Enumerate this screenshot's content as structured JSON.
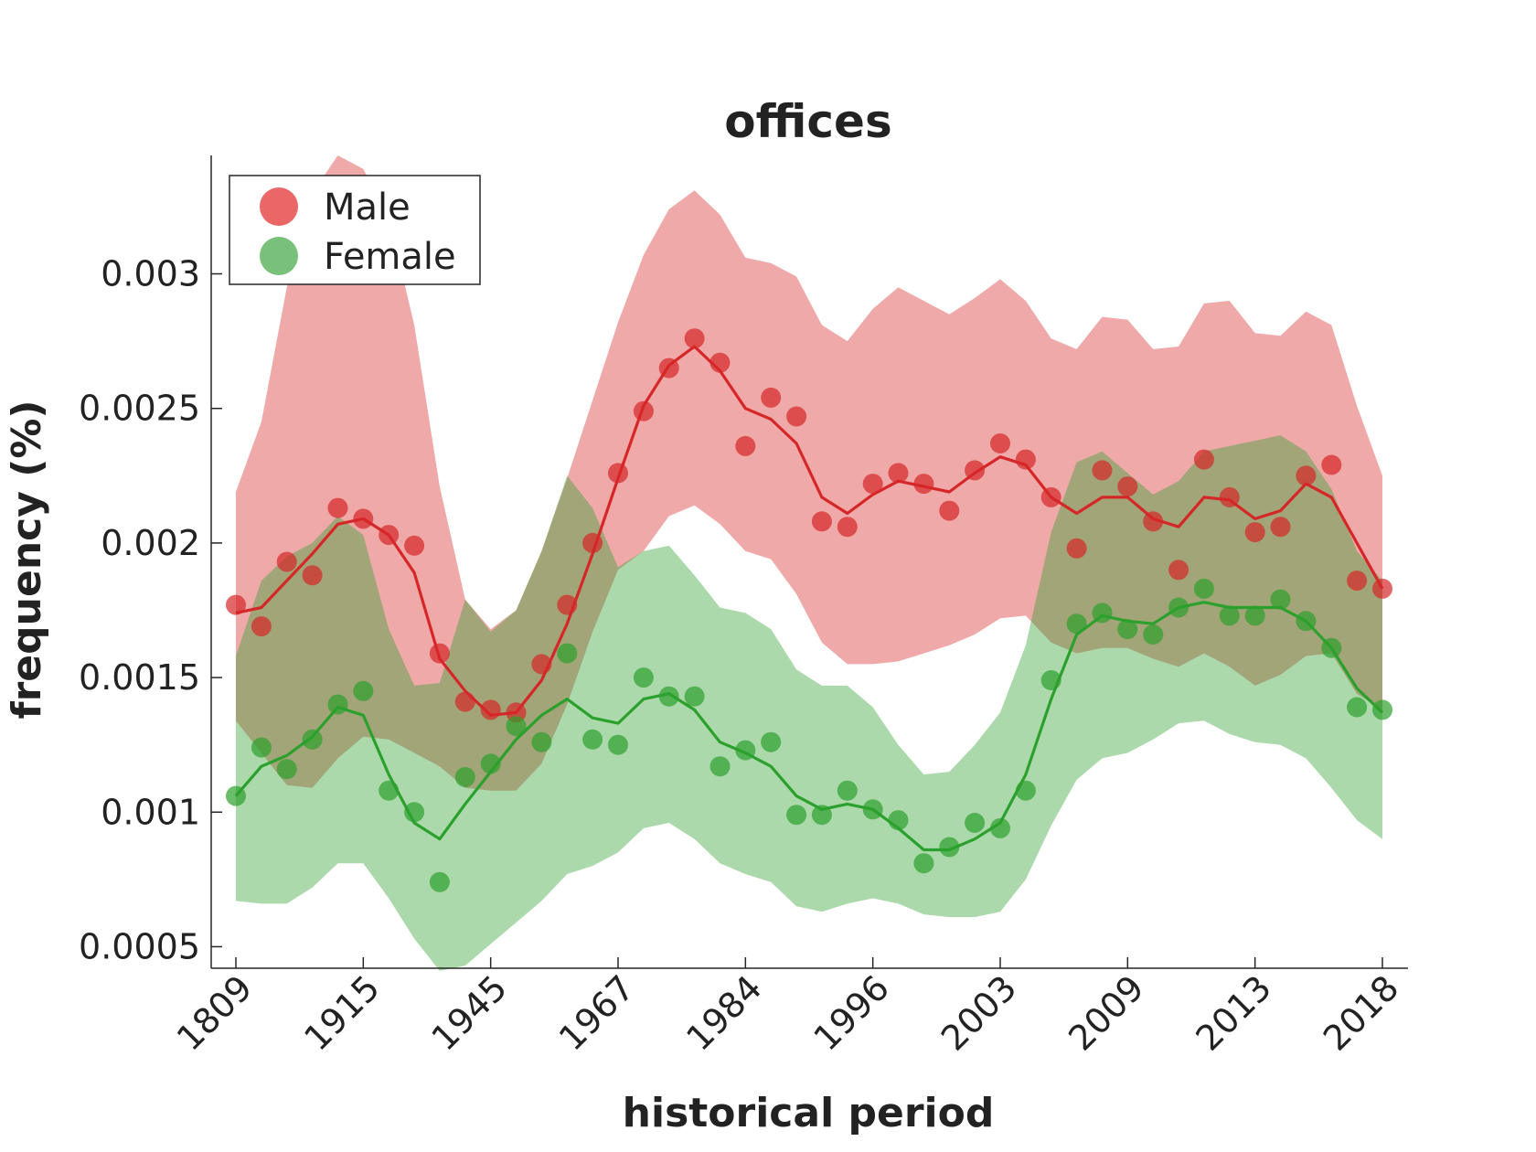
{
  "chart_data": {
    "type": "line",
    "title": "offices",
    "xlabel": "historical period",
    "ylabel": "frequency (%)",
    "ylim": [
      0.00042,
      0.00344
    ],
    "yticks": [
      "0.0005",
      "0.001",
      "0.0015",
      "0.002",
      "0.0025",
      "0.003"
    ],
    "xtick_labels": [
      "1809",
      "1915",
      "1945",
      "1967",
      "1984",
      "1996",
      "2003",
      "2009",
      "2013",
      "2018"
    ],
    "xtick_positions": [
      0,
      5,
      10,
      15,
      20,
      25,
      30,
      35,
      40,
      45
    ],
    "legend_position": "top-left",
    "grid": false,
    "series": [
      {
        "name": "Male",
        "color": "#d62728",
        "band_color": "#f4a3a5",
        "points": [
          0.00177,
          0.00169,
          0.00193,
          0.00188,
          0.00213,
          0.00209,
          0.00203,
          0.00199,
          0.00159,
          0.00141,
          0.00138,
          0.00137,
          0.00155,
          0.00177,
          0.002,
          0.00226,
          0.00249,
          0.00265,
          0.00276,
          0.00267,
          0.00236,
          0.00254,
          0.00247,
          0.00208,
          0.00206,
          0.00222,
          0.00226,
          0.00222,
          0.00212,
          0.00227,
          0.00237,
          0.00231,
          0.00217,
          0.00198,
          0.00227,
          0.00221,
          0.00208,
          0.0019,
          0.00231,
          0.00217,
          0.00204,
          0.00206,
          0.00225,
          0.00229,
          0.00186,
          0.00183
        ],
        "smooth": [
          0.00174,
          0.00176,
          0.00186,
          0.00196,
          0.00207,
          0.00209,
          0.00203,
          0.00189,
          0.00157,
          0.00145,
          0.00136,
          0.00137,
          0.00149,
          0.0017,
          0.00196,
          0.00224,
          0.00251,
          0.00266,
          0.00273,
          0.00264,
          0.0025,
          0.00246,
          0.00237,
          0.00217,
          0.00211,
          0.00218,
          0.00223,
          0.00221,
          0.00219,
          0.00226,
          0.00232,
          0.00229,
          0.00217,
          0.00211,
          0.00217,
          0.00217,
          0.00209,
          0.00206,
          0.00217,
          0.00216,
          0.00209,
          0.00212,
          0.00222,
          0.00217,
          0.002,
          0.00183
        ],
        "upper": [
          0.00219,
          0.00245,
          0.00295,
          0.0033,
          0.00344,
          0.00339,
          0.00321,
          0.00281,
          0.00221,
          0.00179,
          0.00168,
          0.00175,
          0.00197,
          0.00224,
          0.00253,
          0.00282,
          0.00307,
          0.00324,
          0.00331,
          0.00322,
          0.00306,
          0.00304,
          0.00299,
          0.00281,
          0.00275,
          0.00287,
          0.00295,
          0.0029,
          0.00285,
          0.00291,
          0.00298,
          0.0029,
          0.00276,
          0.00272,
          0.00284,
          0.00283,
          0.00272,
          0.00273,
          0.00289,
          0.0029,
          0.00278,
          0.00277,
          0.00286,
          0.00281,
          0.00251,
          0.00225
        ],
        "lower": [
          0.00134,
          0.00122,
          0.0011,
          0.00109,
          0.0012,
          0.00128,
          0.00127,
          0.00122,
          0.00117,
          0.00109,
          0.00108,
          0.00108,
          0.00118,
          0.0014,
          0.00167,
          0.0019,
          0.00197,
          0.0021,
          0.00214,
          0.00207,
          0.00197,
          0.00194,
          0.00181,
          0.00163,
          0.00155,
          0.00155,
          0.00156,
          0.00159,
          0.00162,
          0.00166,
          0.00172,
          0.00173,
          0.00163,
          0.00159,
          0.00161,
          0.00161,
          0.00157,
          0.00154,
          0.00159,
          0.00154,
          0.00147,
          0.00151,
          0.00158,
          0.00159,
          0.00144,
          0.00138
        ]
      },
      {
        "name": "Female",
        "color": "#2ca02c",
        "band_color": "#add9a8",
        "points": [
          0.00106,
          0.00124,
          0.00116,
          0.00127,
          0.0014,
          0.00145,
          0.00108,
          0.001,
          0.00074,
          0.00113,
          0.00118,
          0.00132,
          0.00126,
          0.00159,
          0.00127,
          0.00125,
          0.0015,
          0.00143,
          0.00143,
          0.00117,
          0.00123,
          0.00126,
          0.00099,
          0.00099,
          0.00108,
          0.00101,
          0.00097,
          0.00081,
          0.00087,
          0.00096,
          0.00094,
          0.00108,
          0.00149,
          0.0017,
          0.00174,
          0.00168,
          0.00166,
          0.00176,
          0.00183,
          0.00173,
          0.00173,
          0.00179,
          0.00171,
          0.00161,
          0.00139,
          0.00138
        ],
        "smooth": [
          0.00106,
          0.00117,
          0.00121,
          0.00128,
          0.00139,
          0.00136,
          0.00114,
          0.00096,
          0.0009,
          0.00103,
          0.00115,
          0.00127,
          0.00136,
          0.00142,
          0.00135,
          0.00133,
          0.00142,
          0.00144,
          0.00138,
          0.00126,
          0.00122,
          0.00117,
          0.00106,
          0.00101,
          0.00103,
          0.00101,
          0.00094,
          0.00086,
          0.00086,
          0.0009,
          0.00096,
          0.00114,
          0.00142,
          0.00166,
          0.00173,
          0.00171,
          0.0017,
          0.00176,
          0.00178,
          0.00176,
          0.00176,
          0.00176,
          0.00171,
          0.00161,
          0.00146,
          0.00137
        ],
        "upper": [
          0.00158,
          0.00186,
          0.00195,
          0.002,
          0.0021,
          0.00203,
          0.00168,
          0.00147,
          0.00148,
          0.00179,
          0.00167,
          0.00175,
          0.00197,
          0.00225,
          0.00213,
          0.00191,
          0.00197,
          0.00199,
          0.00188,
          0.00176,
          0.00174,
          0.00168,
          0.00153,
          0.00147,
          0.00147,
          0.00139,
          0.00125,
          0.00114,
          0.00115,
          0.00125,
          0.00137,
          0.00162,
          0.00204,
          0.0023,
          0.00234,
          0.00226,
          0.00218,
          0.00223,
          0.00234,
          0.00236,
          0.00238,
          0.0024,
          0.00234,
          0.0022,
          0.00197,
          0.00186
        ],
        "lower": [
          0.00067,
          0.00066,
          0.00066,
          0.00072,
          0.00081,
          0.00081,
          0.00068,
          0.00053,
          0.00041,
          0.00043,
          0.00051,
          0.00059,
          0.00067,
          0.00077,
          0.0008,
          0.00085,
          0.00094,
          0.00096,
          0.0009,
          0.00081,
          0.00077,
          0.00074,
          0.00065,
          0.00063,
          0.00066,
          0.00068,
          0.00066,
          0.00062,
          0.00061,
          0.00061,
          0.00063,
          0.00075,
          0.00095,
          0.00112,
          0.0012,
          0.00122,
          0.00127,
          0.00133,
          0.00134,
          0.00129,
          0.00126,
          0.00125,
          0.0012,
          0.00109,
          0.00097,
          0.0009
        ]
      }
    ]
  }
}
